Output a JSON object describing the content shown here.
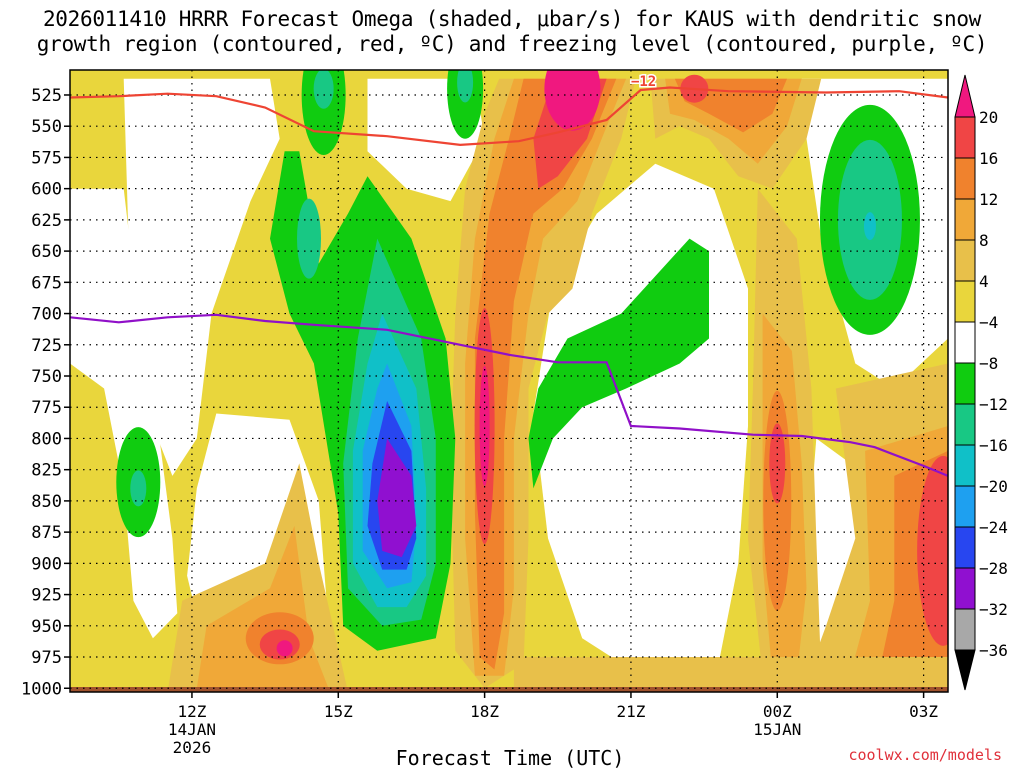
{
  "header": {
    "title_line1": "2026011410 HRRR Forecast Omega (shaded, μbar/s) for KAUS with dendritic snow",
    "title_line2": "growth region (contoured, red, ºC) and freezing level (contoured, purple, ºC)"
  },
  "footer": {
    "credit": "coolwx.com/models"
  },
  "chart_data": {
    "type": "heatmap",
    "title": "2026011410 HRRR Forecast Omega (shaded, μbar/s) for KAUS with dendritic snow growth region (contoured, red, ºC) and freezing level (contoured, purple, ºC)",
    "xlabel": "Forecast Time (UTC)",
    "ylabel": "",
    "x_range_hours": [
      9.5,
      27.5
    ],
    "y_range_hpa": [
      1003,
      505
    ],
    "y_ticks": [
      525,
      550,
      575,
      600,
      625,
      650,
      675,
      700,
      725,
      750,
      775,
      800,
      825,
      850,
      875,
      900,
      925,
      950,
      975,
      1000
    ],
    "x_ticks": [
      {
        "hour": 12,
        "label": "12Z",
        "sub1": "14JAN",
        "sub2": "2026"
      },
      {
        "hour": 15,
        "label": "15Z",
        "sub1": "",
        "sub2": ""
      },
      {
        "hour": 18,
        "label": "18Z",
        "sub1": "",
        "sub2": ""
      },
      {
        "hour": 21,
        "label": "21Z",
        "sub1": "",
        "sub2": ""
      },
      {
        "hour": 24,
        "label": "00Z",
        "sub1": "15JAN",
        "sub2": ""
      },
      {
        "hour": 27,
        "label": "03Z",
        "sub1": "",
        "sub2": ""
      }
    ],
    "grid": true,
    "colorbar": {
      "levels": [
        -36,
        -32,
        -28,
        -24,
        -20,
        -16,
        -12,
        -8,
        -4,
        4,
        8,
        12,
        16,
        20
      ],
      "labels": [
        "20",
        "16",
        "12",
        "8",
        "4",
        "−4",
        "−8",
        "−12",
        "−16",
        "−20",
        "−24",
        "−28",
        "−32",
        "−36"
      ],
      "colors_top_to_bottom": [
        "#f0187f",
        "#f04545",
        "#f0822d",
        "#f0a838",
        "#e8c04a",
        "#e9d63c",
        "#ffffff",
        "#10cc10",
        "#18c884",
        "#10c0c8",
        "#1ea0f0",
        "#2846f0",
        "#9010d0",
        "#a8a8a8",
        "#000000"
      ]
    },
    "features": [
      {
        "name": "ascent-core-850hPa-16Z",
        "peak": -28
      },
      {
        "name": "ascent-core-625hPa-02Z",
        "peak": -16
      },
      {
        "name": "descent-core-525hPa-20Z",
        "peak": 20
      },
      {
        "name": "descent-core-965hPa-14Z",
        "peak": 20
      },
      {
        "name": "descent-core-700-900hPa-18Z",
        "peak": 16
      },
      {
        "name": "descent-core-815hPa-00Z",
        "peak": 16
      },
      {
        "name": "descent-core-875hPa-03Z",
        "peak": 16
      }
    ],
    "dgz_line": {
      "label": "−12",
      "color": "#ee4433",
      "points": [
        [
          9.5,
          527
        ],
        [
          10.5,
          526
        ],
        [
          11.5,
          524
        ],
        [
          12.5,
          526
        ],
        [
          13.5,
          535
        ],
        [
          14.5,
          554
        ],
        [
          16,
          558
        ],
        [
          17.5,
          565
        ],
        [
          18.7,
          562
        ],
        [
          19.5,
          555
        ],
        [
          20.5,
          545
        ],
        [
          21.2,
          521
        ],
        [
          21.8,
          519
        ],
        [
          23,
          522
        ],
        [
          25,
          523
        ],
        [
          26.5,
          522
        ],
        [
          27.5,
          527
        ]
      ]
    },
    "freezing_level": {
      "color": "#9010c8",
      "points": [
        [
          9.5,
          703
        ],
        [
          10.5,
          707
        ],
        [
          11.5,
          703
        ],
        [
          12.5,
          701
        ],
        [
          13.5,
          706
        ],
        [
          14.5,
          709
        ],
        [
          16,
          713
        ],
        [
          17.5,
          725
        ],
        [
          18.5,
          733
        ],
        [
          19.5,
          739
        ],
        [
          20.5,
          739
        ],
        [
          21,
          790
        ],
        [
          22,
          792
        ],
        [
          23.5,
          797
        ],
        [
          24.5,
          798
        ],
        [
          25.5,
          803
        ],
        [
          26,
          807
        ],
        [
          27,
          822
        ],
        [
          27.5,
          830
        ]
      ]
    }
  }
}
